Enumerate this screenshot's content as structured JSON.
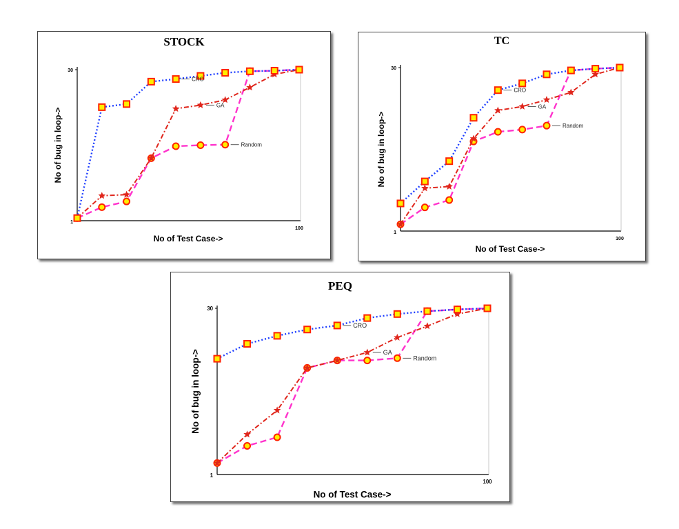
{
  "colors": {
    "cro": "#1f3fff",
    "ga": "#e0261c",
    "random": "#ff33cc",
    "marker_edge": "#ff2200",
    "marker_fill": "#ffee00"
  },
  "chart_data": [
    {
      "type": "line",
      "title": "STOCK",
      "xlabel": "No of Test Case->",
      "ylabel": "No of bug in loop->",
      "xlim": [
        1,
        100
      ],
      "ylim": [
        1,
        30
      ],
      "x_ticks": [
        "1",
        "100"
      ],
      "y_ticks": [
        "1",
        "30"
      ],
      "series": [
        {
          "name": "CRO",
          "x": [
            1,
            12,
            23,
            34,
            45,
            56,
            67,
            78,
            89,
            100
          ],
          "y": [
            1.5,
            22.8,
            23.4,
            27.7,
            28.2,
            28.8,
            29.4,
            29.7,
            29.8,
            30
          ]
        },
        {
          "name": "GA",
          "x": [
            1,
            12,
            23,
            34,
            45,
            56,
            67,
            78,
            89,
            100
          ],
          "y": [
            1.5,
            5.8,
            6,
            13,
            22.5,
            23.2,
            24.2,
            26.6,
            29.1,
            30
          ]
        },
        {
          "name": "Random",
          "x": [
            1,
            12,
            23,
            34,
            45,
            56,
            67,
            78,
            89,
            100
          ],
          "y": [
            1.5,
            3.6,
            4.7,
            13,
            15.3,
            15.5,
            15.6,
            29.7,
            29.8,
            30
          ]
        }
      ]
    },
    {
      "type": "line",
      "title": "TC",
      "xlabel": "No of Test Case->",
      "ylabel": "No of bug in loop->",
      "xlim": [
        1,
        100
      ],
      "ylim": [
        1,
        30
      ],
      "x_ticks": [
        "1",
        "100"
      ],
      "y_ticks": [
        "1",
        "30"
      ],
      "series": [
        {
          "name": "CRO",
          "x": [
            1,
            12,
            23,
            34,
            45,
            56,
            67,
            78,
            89,
            100
          ],
          "y": [
            5.9,
            9.8,
            13.4,
            21.1,
            26,
            27.2,
            28.8,
            29.5,
            29.8,
            30
          ]
        },
        {
          "name": "GA",
          "x": [
            1,
            12,
            23,
            34,
            45,
            56,
            67,
            78,
            89,
            100
          ],
          "y": [
            2.2,
            8.6,
            8.9,
            17.4,
            22.4,
            23.1,
            24.3,
            25.6,
            28.8,
            30
          ]
        },
        {
          "name": "Random",
          "x": [
            1,
            12,
            23,
            34,
            45,
            56,
            67,
            78,
            89,
            100
          ],
          "y": [
            2.2,
            5.2,
            6.5,
            16.9,
            18.6,
            19,
            19.7,
            29.5,
            29.8,
            30
          ]
        }
      ]
    },
    {
      "type": "line",
      "title": "PEQ",
      "xlabel": "No of Test Case->",
      "ylabel": "No of bug in loop->",
      "xlim": [
        1,
        100
      ],
      "ylim": [
        1,
        30
      ],
      "x_ticks": [
        "1",
        "100"
      ],
      "y_ticks": [
        "1",
        "30"
      ],
      "series": [
        {
          "name": "CRO",
          "x": [
            1,
            12,
            23,
            34,
            45,
            56,
            67,
            78,
            89,
            100
          ],
          "y": [
            21.2,
            23.8,
            25.2,
            26.3,
            27,
            28.3,
            29,
            29.5,
            29.8,
            30
          ]
        },
        {
          "name": "GA",
          "x": [
            1,
            12,
            23,
            34,
            45,
            56,
            67,
            78,
            89,
            100
          ],
          "y": [
            3,
            8,
            12.2,
            19.6,
            20.9,
            22.3,
            24.9,
            26.9,
            29,
            30
          ]
        },
        {
          "name": "Random",
          "x": [
            1,
            12,
            23,
            34,
            45,
            56,
            67,
            78,
            89,
            100
          ],
          "y": [
            3,
            6,
            7.5,
            19.6,
            20.9,
            20.9,
            21.3,
            29.5,
            29.8,
            30
          ]
        }
      ]
    }
  ]
}
